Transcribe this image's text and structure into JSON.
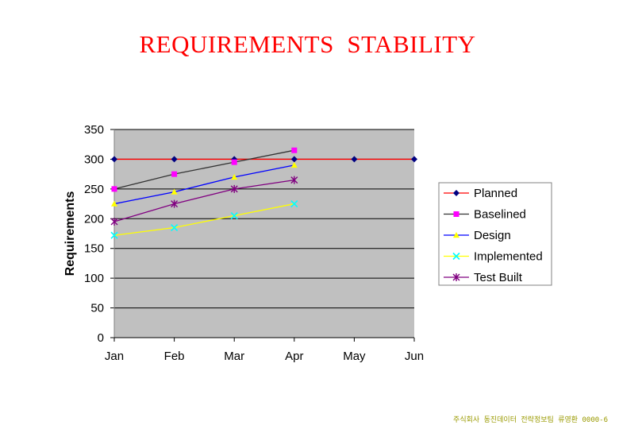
{
  "title": "REQUIREMENTS  STABILITY",
  "footer": "주식회사 동진데이터 전략정보팀 류영환 0000-6",
  "chart_data": {
    "type": "line",
    "categories": [
      "Jan",
      "Feb",
      "Mar",
      "Apr",
      "May",
      "Jun"
    ],
    "ylabel": "Requirements",
    "xlabel": "",
    "ylim": [
      0,
      350
    ],
    "yticks": [
      0,
      50,
      100,
      150,
      200,
      250,
      300,
      350
    ],
    "grid": true,
    "legend_position": "right",
    "series": [
      {
        "name": "Planned",
        "values": [
          300,
          300,
          300,
          300,
          300,
          300
        ],
        "color": "#ff0000",
        "marker_color": "#000080",
        "marker": "diamond"
      },
      {
        "name": "Baselined",
        "values": [
          250,
          275,
          295,
          315,
          null,
          null
        ],
        "color": "#333333",
        "marker_color": "#ff00ff",
        "marker": "square"
      },
      {
        "name": "Design",
        "values": [
          225,
          245,
          270,
          290,
          null,
          null
        ],
        "color": "#0000ff",
        "marker_color": "#ffff00",
        "marker": "triangle"
      },
      {
        "name": "Implemented",
        "values": [
          172,
          185,
          205,
          225,
          null,
          null
        ],
        "color": "#ffff00",
        "marker_color": "#00ffff",
        "marker": "x"
      },
      {
        "name": "Test Built",
        "values": [
          195,
          225,
          250,
          265,
          null,
          null
        ],
        "color": "#800080",
        "marker_color": "#800080",
        "marker": "star"
      }
    ]
  }
}
